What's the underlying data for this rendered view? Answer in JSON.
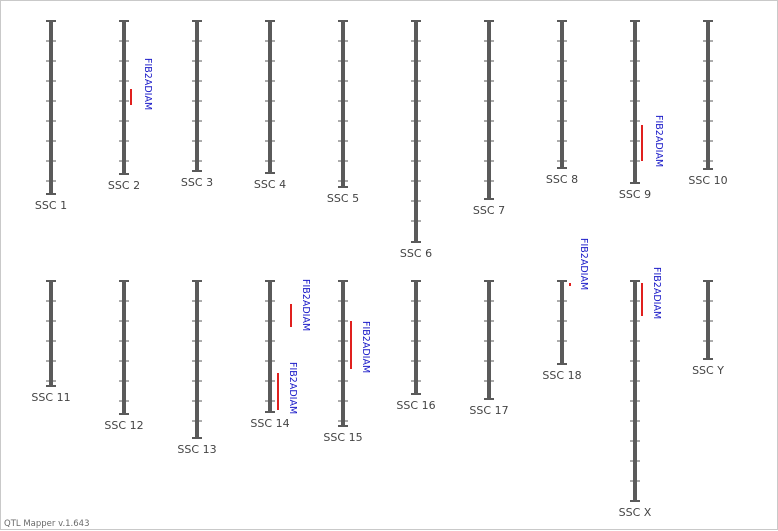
{
  "app": {
    "version": "QTL Mapper v.1.643"
  },
  "colors": {
    "chromosome": "#5a5a5a",
    "qtl_bar": "#e0201e",
    "qtl_text": "#1a1ac8",
    "label": "#444444"
  },
  "chromosomes": [
    {
      "id": "ssc1",
      "label": "SSC 1",
      "qtls": []
    },
    {
      "id": "ssc2",
      "label": "SSC 2",
      "qtls": [
        {
          "trait": "FIB2ADIAM"
        }
      ]
    },
    {
      "id": "ssc3",
      "label": "SSC 3",
      "qtls": []
    },
    {
      "id": "ssc4",
      "label": "SSC 4",
      "qtls": []
    },
    {
      "id": "ssc5",
      "label": "SSC 5",
      "qtls": []
    },
    {
      "id": "ssc6",
      "label": "SSC 6",
      "qtls": []
    },
    {
      "id": "ssc7",
      "label": "SSC 7",
      "qtls": []
    },
    {
      "id": "ssc8",
      "label": "SSC 8",
      "qtls": []
    },
    {
      "id": "ssc9",
      "label": "SSC 9",
      "qtls": [
        {
          "trait": "FIB2ADIAM"
        }
      ]
    },
    {
      "id": "ssc10",
      "label": "SSC 10",
      "qtls": []
    },
    {
      "id": "ssc11",
      "label": "SSC 11",
      "qtls": []
    },
    {
      "id": "ssc12",
      "label": "SSC 12",
      "qtls": []
    },
    {
      "id": "ssc13",
      "label": "SSC 13",
      "qtls": []
    },
    {
      "id": "ssc14",
      "label": "SSC 14",
      "qtls": [
        {
          "trait": "FIB2ADIAM"
        },
        {
          "trait": "FIB2ADIAM"
        }
      ]
    },
    {
      "id": "ssc15",
      "label": "SSC 15",
      "qtls": [
        {
          "trait": "FIB2ADIAM"
        }
      ]
    },
    {
      "id": "ssc16",
      "label": "SSC 16",
      "qtls": []
    },
    {
      "id": "ssc17",
      "label": "SSC 17",
      "qtls": []
    },
    {
      "id": "ssc18",
      "label": "SSC 18",
      "qtls": [
        {
          "trait": "FIB2ADIAM"
        }
      ]
    },
    {
      "id": "sscx",
      "label": "SSC X",
      "qtls": [
        {
          "trait": "FIB2ADIAM"
        }
      ]
    },
    {
      "id": "sscy",
      "label": "SSC Y",
      "qtls": []
    }
  ]
}
